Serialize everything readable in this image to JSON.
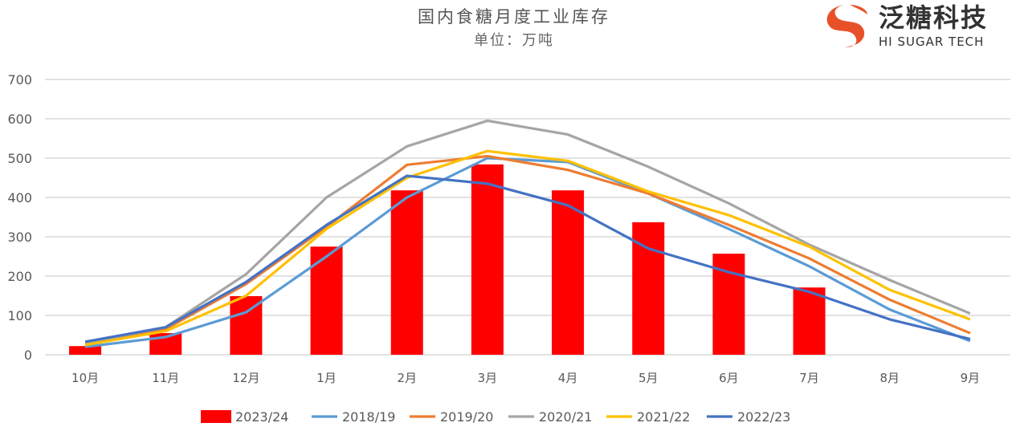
{
  "logo": {
    "cn": "泛糖科技",
    "en": "HI SUGAR TECH"
  },
  "chart_data": {
    "type": "bar+line",
    "title": "国内食糖月度工业库存",
    "subtitle": "单位：万吨",
    "xlabel": "",
    "ylabel": "",
    "ylim": [
      0,
      700
    ],
    "yticks": [
      0,
      100,
      200,
      300,
      400,
      500,
      600,
      700
    ],
    "grid": true,
    "legend_position": "bottom",
    "categories": [
      "10月",
      "11月",
      "12月",
      "1月",
      "2月",
      "3月",
      "4月",
      "5月",
      "6月",
      "7月",
      "8月",
      "9月"
    ],
    "series": [
      {
        "name": "2023/24",
        "kind": "bar",
        "color": "#FF0000",
        "values": [
          22,
          55,
          149,
          275,
          418,
          484,
          418,
          337,
          257,
          171,
          null,
          null
        ]
      },
      {
        "name": "2018/19",
        "kind": "line",
        "color": "#5B9BD5",
        "values": [
          20,
          45,
          108,
          250,
          400,
          500,
          490,
          410,
          320,
          225,
          115,
          35
        ]
      },
      {
        "name": "2019/20",
        "kind": "line",
        "color": "#ED7D31",
        "values": [
          25,
          65,
          180,
          325,
          483,
          505,
          470,
          410,
          330,
          245,
          140,
          55
        ]
      },
      {
        "name": "2020/21",
        "kind": "line",
        "color": "#A5A5A5",
        "values": [
          30,
          70,
          205,
          400,
          530,
          595,
          560,
          478,
          385,
          280,
          190,
          105
        ]
      },
      {
        "name": "2021/22",
        "kind": "line",
        "color": "#FFC000",
        "values": [
          25,
          60,
          150,
          320,
          450,
          518,
          493,
          415,
          355,
          275,
          165,
          90
        ]
      },
      {
        "name": "2022/23",
        "kind": "line",
        "color": "#4472C4",
        "values": [
          33,
          70,
          185,
          330,
          455,
          435,
          380,
          270,
          210,
          160,
          90,
          40
        ]
      }
    ]
  }
}
